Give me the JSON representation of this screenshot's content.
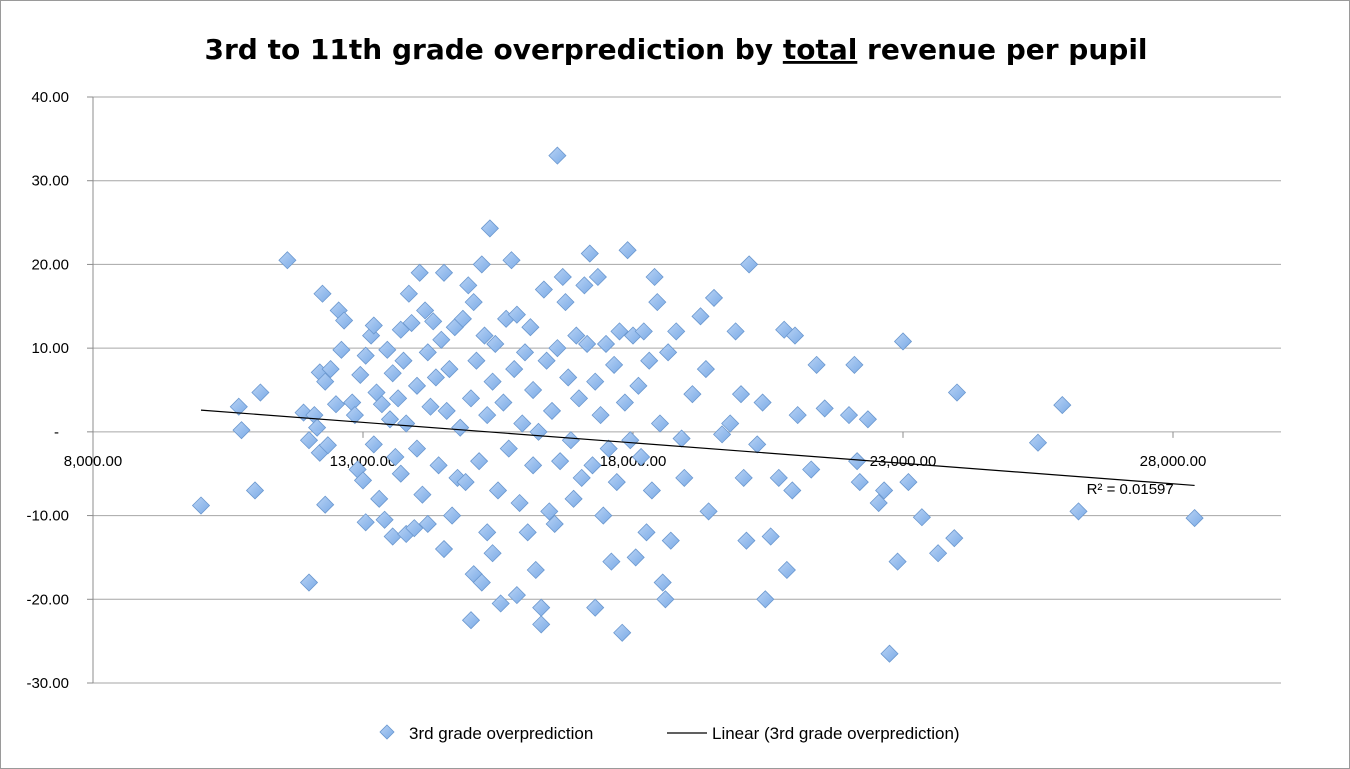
{
  "chart_data": {
    "type": "scatter",
    "title_parts": [
      "3rd to 11th grade overprediction by ",
      "total",
      " revenue per pupil"
    ],
    "xlim": [
      8000,
      30000
    ],
    "ylim": [
      -30,
      40
    ],
    "x_ticks": [
      8000,
      13000,
      18000,
      23000,
      28000
    ],
    "x_tick_labels": [
      "8,000.00",
      "13,000.00",
      "18,000.00",
      "23,000.00",
      "28,000.00"
    ],
    "y_ticks": [
      40,
      30,
      20,
      10,
      0,
      -10,
      -20,
      -30
    ],
    "y_tick_labels": [
      "40.00",
      "30.00",
      "20.00",
      "10.00",
      "-",
      "-10.00",
      "-20.00",
      "-30.00"
    ],
    "grid": "horizontal",
    "legend_position": "bottom",
    "series": [
      {
        "name": "3rd grade overprediction",
        "color": "#7aaae6",
        "points": [
          [
            10000,
            -8.8
          ],
          [
            10700,
            3
          ],
          [
            10750,
            0.2
          ],
          [
            11000,
            -7
          ],
          [
            11100,
            4.7
          ],
          [
            11600,
            20.5
          ],
          [
            11900,
            2.3
          ],
          [
            12000,
            -1
          ],
          [
            12000,
            -18
          ],
          [
            12100,
            2
          ],
          [
            12150,
            0.5
          ],
          [
            12200,
            -2.5
          ],
          [
            12200,
            7.1
          ],
          [
            12250,
            16.5
          ],
          [
            12300,
            -8.7
          ],
          [
            12300,
            6
          ],
          [
            12350,
            -1.6
          ],
          [
            12400,
            7.5
          ],
          [
            12500,
            3.3
          ],
          [
            12550,
            14.5
          ],
          [
            12600,
            9.8
          ],
          [
            12650,
            13.3
          ],
          [
            12800,
            3.5
          ],
          [
            12850,
            2
          ],
          [
            12900,
            -4.5
          ],
          [
            12950,
            6.8
          ],
          [
            13000,
            -5.8
          ],
          [
            13050,
            -10.8
          ],
          [
            13050,
            9.1
          ],
          [
            13150,
            11.5
          ],
          [
            13200,
            12.7
          ],
          [
            13200,
            -1.5
          ],
          [
            13250,
            4.7
          ],
          [
            13300,
            -8
          ],
          [
            13350,
            3.3
          ],
          [
            13400,
            -10.5
          ],
          [
            13450,
            9.8
          ],
          [
            13500,
            1.5
          ],
          [
            13550,
            -12.5
          ],
          [
            13550,
            7
          ],
          [
            13600,
            -3
          ],
          [
            13650,
            4
          ],
          [
            13700,
            12.2
          ],
          [
            13700,
            -5
          ],
          [
            13750,
            8.5
          ],
          [
            13800,
            -12.2
          ],
          [
            13800,
            1
          ],
          [
            13850,
            16.5
          ],
          [
            13900,
            13
          ],
          [
            13950,
            -11.5
          ],
          [
            14000,
            5.5
          ],
          [
            14000,
            -2
          ],
          [
            14050,
            19
          ],
          [
            14100,
            -7.5
          ],
          [
            14150,
            14.5
          ],
          [
            14200,
            9.5
          ],
          [
            14200,
            -11
          ],
          [
            14250,
            3
          ],
          [
            14300,
            13.2
          ],
          [
            14350,
            6.5
          ],
          [
            14400,
            -4
          ],
          [
            14450,
            11
          ],
          [
            14500,
            19
          ],
          [
            14500,
            -14
          ],
          [
            14550,
            2.5
          ],
          [
            14600,
            7.5
          ],
          [
            14650,
            -10
          ],
          [
            14700,
            12.5
          ],
          [
            14750,
            -5.5
          ],
          [
            14800,
            0.5
          ],
          [
            14850,
            13.5
          ],
          [
            14900,
            -6
          ],
          [
            14950,
            17.5
          ],
          [
            15000,
            -22.5
          ],
          [
            15000,
            4
          ],
          [
            15050,
            -17
          ],
          [
            15050,
            15.5
          ],
          [
            15100,
            8.5
          ],
          [
            15150,
            -3.5
          ],
          [
            15200,
            -18
          ],
          [
            15200,
            20
          ],
          [
            15250,
            11.5
          ],
          [
            15300,
            -12
          ],
          [
            15300,
            2
          ],
          [
            15350,
            24.3
          ],
          [
            15400,
            6
          ],
          [
            15400,
            -14.5
          ],
          [
            15450,
            10.5
          ],
          [
            15500,
            -7
          ],
          [
            15550,
            -20.5
          ],
          [
            15600,
            3.5
          ],
          [
            15650,
            13.5
          ],
          [
            15700,
            -2
          ],
          [
            15750,
            20.5
          ],
          [
            15800,
            7.5
          ],
          [
            15850,
            14
          ],
          [
            15850,
            -19.5
          ],
          [
            15900,
            -8.5
          ],
          [
            15950,
            1
          ],
          [
            16000,
            9.5
          ],
          [
            16050,
            -12
          ],
          [
            16100,
            12.5
          ],
          [
            16150,
            -4
          ],
          [
            16150,
            5
          ],
          [
            16200,
            -16.5
          ],
          [
            16250,
            0
          ],
          [
            16300,
            -23
          ],
          [
            16300,
            -21
          ],
          [
            16350,
            17
          ],
          [
            16400,
            8.5
          ],
          [
            16450,
            -9.5
          ],
          [
            16500,
            2.5
          ],
          [
            16550,
            -11
          ],
          [
            16600,
            33
          ],
          [
            16600,
            10
          ],
          [
            16650,
            -3.5
          ],
          [
            16700,
            18.5
          ],
          [
            16750,
            15.5
          ],
          [
            16800,
            6.5
          ],
          [
            16850,
            -1
          ],
          [
            16900,
            -8
          ],
          [
            16950,
            11.5
          ],
          [
            17000,
            4
          ],
          [
            17050,
            -5.5
          ],
          [
            17100,
            17.5
          ],
          [
            17150,
            10.5
          ],
          [
            17200,
            21.3
          ],
          [
            17250,
            -4
          ],
          [
            17300,
            6
          ],
          [
            17300,
            -21
          ],
          [
            17350,
            18.5
          ],
          [
            17400,
            2
          ],
          [
            17450,
            -10
          ],
          [
            17500,
            10.5
          ],
          [
            17550,
            -2
          ],
          [
            17600,
            -15.5
          ],
          [
            17650,
            8
          ],
          [
            17700,
            -6
          ],
          [
            17750,
            12
          ],
          [
            17800,
            -24
          ],
          [
            17850,
            3.5
          ],
          [
            17900,
            21.7
          ],
          [
            17950,
            -1
          ],
          [
            18000,
            11.5
          ],
          [
            18050,
            -15
          ],
          [
            18100,
            5.5
          ],
          [
            18150,
            -3
          ],
          [
            18200,
            12
          ],
          [
            18250,
            -12
          ],
          [
            18300,
            8.5
          ],
          [
            18350,
            -7
          ],
          [
            18400,
            18.5
          ],
          [
            18450,
            15.5
          ],
          [
            18500,
            1
          ],
          [
            18550,
            -18
          ],
          [
            18600,
            -20
          ],
          [
            18650,
            9.5
          ],
          [
            18700,
            -13
          ],
          [
            18800,
            12
          ],
          [
            18900,
            -0.8
          ],
          [
            18950,
            -5.5
          ],
          [
            19100,
            4.5
          ],
          [
            19250,
            13.8
          ],
          [
            19350,
            7.5
          ],
          [
            19400,
            -9.5
          ],
          [
            19500,
            16
          ],
          [
            19650,
            -0.3
          ],
          [
            19800,
            1
          ],
          [
            19900,
            12
          ],
          [
            20000,
            4.5
          ],
          [
            20050,
            -5.5
          ],
          [
            20100,
            -13
          ],
          [
            20150,
            20
          ],
          [
            20300,
            -1.5
          ],
          [
            20400,
            3.5
          ],
          [
            20450,
            -20
          ],
          [
            20550,
            -12.5
          ],
          [
            20700,
            -5.5
          ],
          [
            20800,
            12.2
          ],
          [
            20850,
            -16.5
          ],
          [
            20950,
            -7
          ],
          [
            21000,
            11.5
          ],
          [
            21050,
            2
          ],
          [
            21300,
            -4.5
          ],
          [
            21400,
            8
          ],
          [
            21550,
            2.8
          ],
          [
            22000,
            2
          ],
          [
            22100,
            8
          ],
          [
            22150,
            -3.5
          ],
          [
            22200,
            -6
          ],
          [
            22350,
            1.5
          ],
          [
            22550,
            -8.5
          ],
          [
            22650,
            -7
          ],
          [
            22750,
            -26.5
          ],
          [
            22900,
            -15.5
          ],
          [
            23000,
            10.8
          ],
          [
            23100,
            -6
          ],
          [
            23350,
            -10.2
          ],
          [
            23650,
            -14.5
          ],
          [
            23950,
            -12.7
          ],
          [
            24000,
            4.7
          ],
          [
            25500,
            -1.3
          ],
          [
            25950,
            3.2
          ],
          [
            26250,
            -9.5
          ],
          [
            28400,
            -10.3
          ]
        ]
      }
    ],
    "trendline": {
      "name": "Linear (3rd grade overprediction)",
      "x": [
        10000,
        28400
      ],
      "y": [
        2.6,
        -6.4
      ],
      "r2_label": "R² = 0.01597",
      "color": "#000000"
    }
  }
}
